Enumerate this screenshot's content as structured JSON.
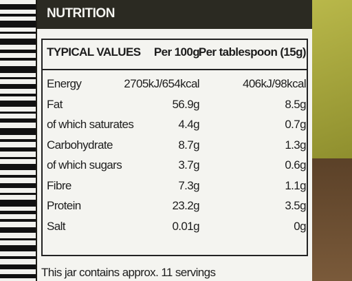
{
  "header": {
    "title": "NUTRITION"
  },
  "table": {
    "columns": [
      "TYPICAL VALUES",
      "Per 100g",
      "Per tablespoon (15g)"
    ],
    "rows": [
      [
        "Energy",
        "2705kJ/654kcal",
        "406kJ/98kcal"
      ],
      [
        "Fat",
        "56.9g",
        "8.5g"
      ],
      [
        "of which saturates",
        "4.4g",
        "0.7g"
      ],
      [
        "Carbohydrate",
        "8.7g",
        "1.3g"
      ],
      [
        "of which sugars",
        "3.7g",
        "0.6g"
      ],
      [
        "Fibre",
        "7.3g",
        "1.1g"
      ],
      [
        "Protein",
        "23.2g",
        "3.5g"
      ],
      [
        "Salt",
        "0.01g",
        "0g"
      ]
    ]
  },
  "footer": {
    "note": "This jar contains approx. 11 servings"
  }
}
